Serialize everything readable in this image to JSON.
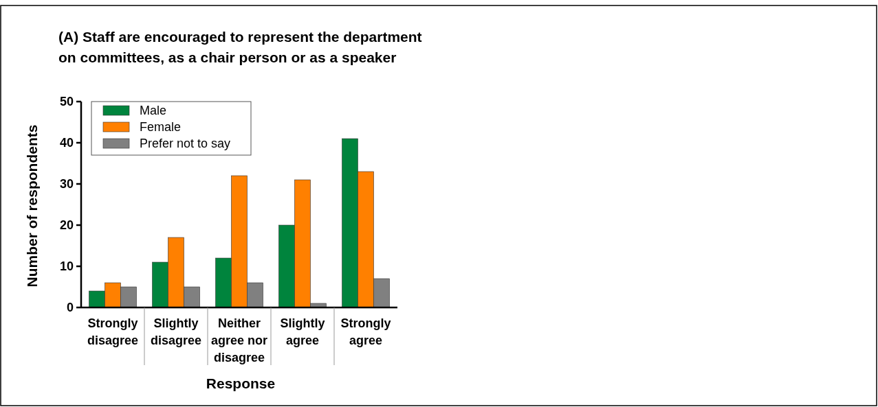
{
  "chart_data": {
    "type": "bar",
    "title": "(A) Staff are encouraged to represent the department on committees, as a chair person or as a speaker",
    "xlabel": "Response",
    "ylabel": "Number of respondents",
    "categories": [
      "Strongly disagree",
      "Slightly disagree",
      "Neither agree nor disagree",
      "Slightly agree",
      "Strongly agree"
    ],
    "series": [
      {
        "name": "Male",
        "color": "#00843d",
        "values": [
          4,
          11,
          12,
          20,
          41
        ]
      },
      {
        "name": "Female",
        "color": "#ff8000",
        "values": [
          6,
          17,
          32,
          31,
          33
        ]
      },
      {
        "name": "Prefer not to say",
        "color": "#808080",
        "values": [
          5,
          5,
          6,
          1,
          7
        ]
      }
    ],
    "ylim": [
      0,
      50
    ],
    "yticks": [
      0,
      10,
      20,
      30,
      40,
      50
    ],
    "grid": false,
    "legend": "top left"
  }
}
